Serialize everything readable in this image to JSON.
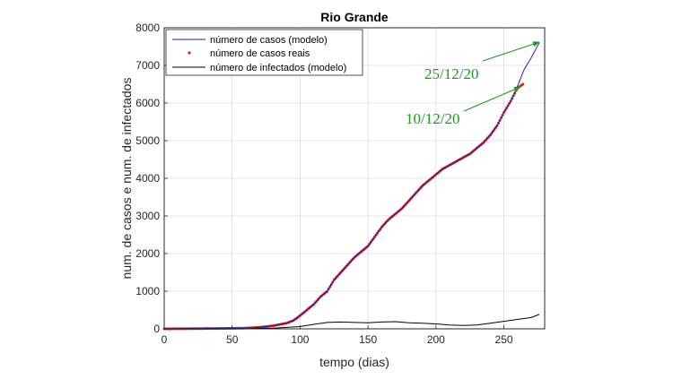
{
  "chart_data": {
    "type": "line",
    "title": "Rio Grande",
    "xlabel": "tempo (dias)",
    "ylabel": "num. de casos e num. de infectados",
    "xlim": [
      0,
      280
    ],
    "ylim": [
      0,
      8000
    ],
    "xticks": [
      0,
      50,
      100,
      150,
      200,
      250
    ],
    "yticks": [
      0,
      1000,
      2000,
      3000,
      4000,
      5000,
      6000,
      7000,
      8000
    ],
    "grid": true,
    "legend_position": "top-left",
    "series": [
      {
        "name": "número de casos (modelo)",
        "style": "line",
        "color": "#1f1fb4",
        "x": [
          0,
          20,
          40,
          60,
          70,
          80,
          90,
          95,
          100,
          105,
          110,
          115,
          120,
          125,
          130,
          135,
          140,
          145,
          150,
          155,
          160,
          165,
          170,
          175,
          180,
          185,
          190,
          195,
          200,
          205,
          210,
          215,
          220,
          225,
          230,
          235,
          240,
          245,
          250,
          255,
          260,
          265,
          270,
          276
        ],
        "y": [
          0,
          5,
          10,
          20,
          40,
          80,
          150,
          220,
          350,
          500,
          650,
          850,
          1000,
          1300,
          1500,
          1700,
          1900,
          2050,
          2200,
          2450,
          2700,
          2900,
          3050,
          3200,
          3400,
          3600,
          3800,
          3950,
          4100,
          4250,
          4350,
          4450,
          4550,
          4650,
          4800,
          4950,
          5150,
          5400,
          5750,
          6050,
          6450,
          6900,
          7200,
          7600
        ]
      },
      {
        "name": "número de casos reais",
        "style": "points",
        "color": "#d92020",
        "x": [
          0,
          20,
          40,
          60,
          70,
          80,
          90,
          95,
          100,
          105,
          110,
          115,
          120,
          125,
          130,
          135,
          140,
          145,
          150,
          155,
          160,
          165,
          170,
          175,
          180,
          185,
          190,
          195,
          200,
          205,
          210,
          215,
          220,
          225,
          230,
          235,
          240,
          245,
          250,
          255,
          260,
          264
        ],
        "y": [
          0,
          5,
          10,
          20,
          40,
          80,
          150,
          220,
          350,
          500,
          650,
          850,
          1000,
          1300,
          1500,
          1700,
          1900,
          2050,
          2200,
          2450,
          2700,
          2900,
          3050,
          3200,
          3400,
          3600,
          3800,
          3950,
          4100,
          4250,
          4350,
          4450,
          4550,
          4650,
          4800,
          4950,
          5150,
          5400,
          5750,
          6050,
          6400,
          6500
        ]
      },
      {
        "name": "número de infectados (modelo)",
        "style": "line",
        "color": "#000000",
        "x": [
          0,
          50,
          80,
          100,
          110,
          120,
          130,
          140,
          150,
          160,
          170,
          180,
          190,
          200,
          210,
          220,
          230,
          240,
          250,
          260,
          270,
          276
        ],
        "y": [
          0,
          5,
          20,
          60,
          120,
          170,
          180,
          170,
          160,
          180,
          190,
          160,
          150,
          130,
          100,
          90,
          100,
          150,
          200,
          250,
          300,
          380
        ]
      }
    ],
    "annotations": [
      {
        "text": "25/12/20",
        "color": "#1a9a1a",
        "x": 276,
        "y": 7600
      },
      {
        "text": "10/12/20",
        "color": "#1a9a1a",
        "x": 262,
        "y": 6450
      }
    ]
  }
}
